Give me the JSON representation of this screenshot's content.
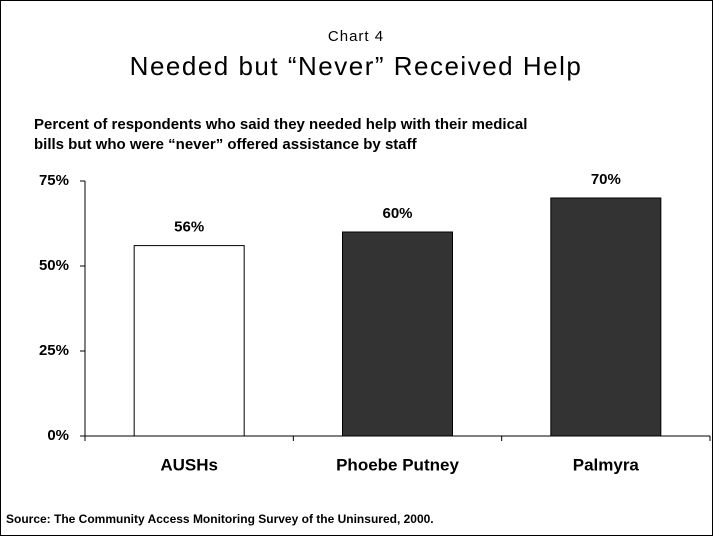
{
  "chart_data": {
    "type": "bar",
    "supertitle": "Chart 4",
    "title": "Needed but “Never” Received Help",
    "subtitle": [
      "Percent of respondents who said they needed help with their medical",
      "bills but who were “never” offered assistance by staff"
    ],
    "categories": [
      "AUSHs",
      "Phoebe Putney",
      "Palmyra"
    ],
    "values": [
      56,
      60,
      70
    ],
    "value_labels": [
      "56%",
      "60%",
      "70%"
    ],
    "colors": [
      "#ffffff",
      "#333333",
      "#333333"
    ],
    "ylim": [
      0,
      75
    ],
    "yticks": [
      {
        "value": 0,
        "label": "0%"
      },
      {
        "value": 25,
        "label": "25%"
      },
      {
        "value": 50,
        "label": "50%"
      },
      {
        "value": 75,
        "label": "75%"
      }
    ],
    "grid": false,
    "source": "Source: The Community Access Monitoring Survey of the Uninsured, 2000."
  }
}
